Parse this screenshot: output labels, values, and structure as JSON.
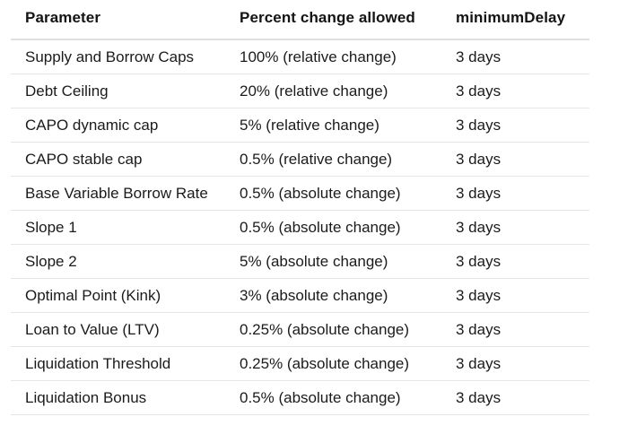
{
  "table": {
    "columns": [
      {
        "key": "parameter",
        "label": "Parameter"
      },
      {
        "key": "percent_change_allowed",
        "label": "Percent change allowed"
      },
      {
        "key": "minimum_delay",
        "label": "minimumDelay"
      }
    ],
    "rows": [
      {
        "parameter": "Supply and Borrow Caps",
        "percent_change_allowed": "100% (relative change)",
        "minimum_delay": "3 days"
      },
      {
        "parameter": "Debt Ceiling",
        "percent_change_allowed": "20% (relative change)",
        "minimum_delay": "3 days"
      },
      {
        "parameter": "CAPO dynamic cap",
        "percent_change_allowed": "5% (relative change)",
        "minimum_delay": "3 days"
      },
      {
        "parameter": "CAPO stable cap",
        "percent_change_allowed": "0.5% (relative change)",
        "minimum_delay": "3 days"
      },
      {
        "parameter": "Base Variable Borrow Rate",
        "percent_change_allowed": "0.5% (absolute change)",
        "minimum_delay": "3 days"
      },
      {
        "parameter": "Slope 1",
        "percent_change_allowed": "0.5% (absolute change)",
        "minimum_delay": "3 days"
      },
      {
        "parameter": "Slope 2",
        "percent_change_allowed": "5% (absolute change)",
        "minimum_delay": "3 days"
      },
      {
        "parameter": "Optimal Point (Kink)",
        "percent_change_allowed": "3% (absolute change)",
        "minimum_delay": "3 days"
      },
      {
        "parameter": "Loan to Value (LTV)",
        "percent_change_allowed": "0.25% (absolute change)",
        "minimum_delay": "3 days"
      },
      {
        "parameter": "Liquidation Threshold",
        "percent_change_allowed": "0.25% (absolute change)",
        "minimum_delay": "3 days"
      },
      {
        "parameter": "Liquidation Bonus",
        "percent_change_allowed": "0.5% (absolute change)",
        "minimum_delay": "3 days"
      }
    ],
    "colors": {
      "text": "#1b1b1b",
      "header_text": "#141414",
      "header_divider": "#e0e0e0",
      "row_divider": "#e6e6e6",
      "background": "#ffffff"
    }
  }
}
